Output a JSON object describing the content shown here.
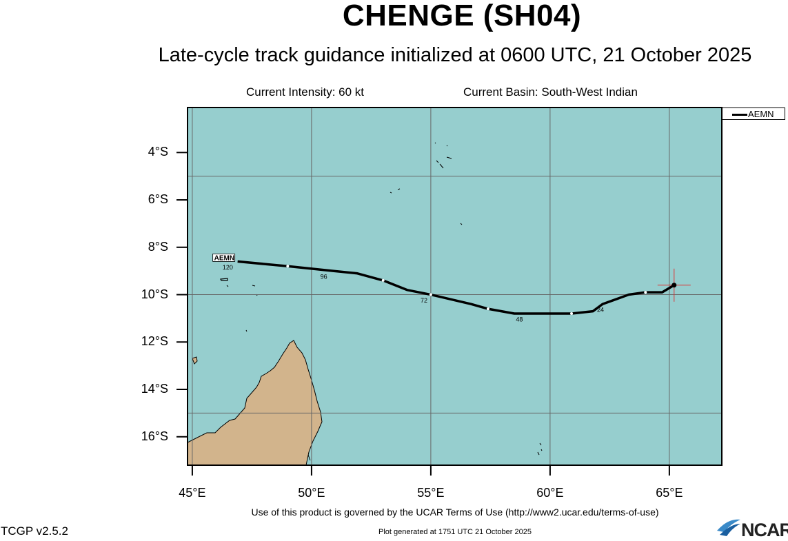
{
  "header": {
    "title": "CHENGE (SH04)",
    "subtitle": "Late-cycle track guidance initialized at 0600 UTC, 21 October 2025",
    "intensity": "Current Intensity: 60 kt",
    "basin": "Current Basin: South-West Indian"
  },
  "legend": {
    "model": "AEMN"
  },
  "map": {
    "ocean_color": "#96cece",
    "land_color": "#d2b48c",
    "grid_color": "#666666",
    "lon_range": [
      44.8,
      67.2
    ],
    "lat_range": [
      -17.2,
      -2.1
    ],
    "x_ticks": [
      "45°E",
      "50°E",
      "55°E",
      "60°E",
      "65°E"
    ],
    "y_ticks": [
      "4°S",
      "6°S",
      "8°S",
      "10°S",
      "12°S",
      "14°S",
      "16°S"
    ],
    "track_label": "AEMN",
    "track": [
      {
        "lon": 65.2,
        "lat": -9.6
      },
      {
        "lon": 64.7,
        "lat": -9.9
      },
      {
        "lon": 64.0,
        "lat": -9.9
      },
      {
        "lon": 63.3,
        "lat": -10.0
      },
      {
        "lon": 62.2,
        "lat": -10.4
      },
      {
        "lon": 61.8,
        "lat": -10.7
      },
      {
        "lon": 60.9,
        "lat": -10.8
      },
      {
        "lon": 59.1,
        "lat": -10.8
      },
      {
        "lon": 58.5,
        "lat": -10.8
      },
      {
        "lon": 57.4,
        "lat": -10.6
      },
      {
        "lon": 56.7,
        "lat": -10.4
      },
      {
        "lon": 55.0,
        "lat": -10.0
      },
      {
        "lon": 54.0,
        "lat": -9.8
      },
      {
        "lon": 53.0,
        "lat": -9.4
      },
      {
        "lon": 51.9,
        "lat": -9.1
      },
      {
        "lon": 50.9,
        "lat": -9.0
      },
      {
        "lon": 49.0,
        "lat": -8.8
      },
      {
        "lon": 46.9,
        "lat": -8.6
      }
    ],
    "markers": [
      {
        "lon": 64.0,
        "lat": -9.9
      },
      {
        "lon": 60.9,
        "lat": -10.8
      },
      {
        "lon": 57.4,
        "lat": -10.6
      },
      {
        "lon": 55.0,
        "lat": -10.0
      },
      {
        "lon": 53.0,
        "lat": -9.4
      },
      {
        "lon": 49.0,
        "lat": -8.8
      }
    ],
    "hour_labels": [
      {
        "text": "24",
        "lon": 62.2,
        "lat": -10.5
      },
      {
        "text": "48",
        "lon": 58.8,
        "lat": -10.9
      },
      {
        "text": "72",
        "lon": 54.8,
        "lat": -10.1
      },
      {
        "text": "96",
        "lon": 50.6,
        "lat": -9.1
      },
      {
        "text": "120",
        "lon": 46.5,
        "lat": -8.7
      }
    ],
    "current_position": {
      "lon": 65.2,
      "lat": -9.6
    }
  },
  "footer": {
    "terms": "Use of this product is governed by the UCAR Terms of Use (http://www2.ucar.edu/terms-of-use)",
    "version": "TCGP v2.5.2",
    "generated": "Plot generated at 1751 UTC   21 October 2025",
    "logo": "NCAR"
  }
}
